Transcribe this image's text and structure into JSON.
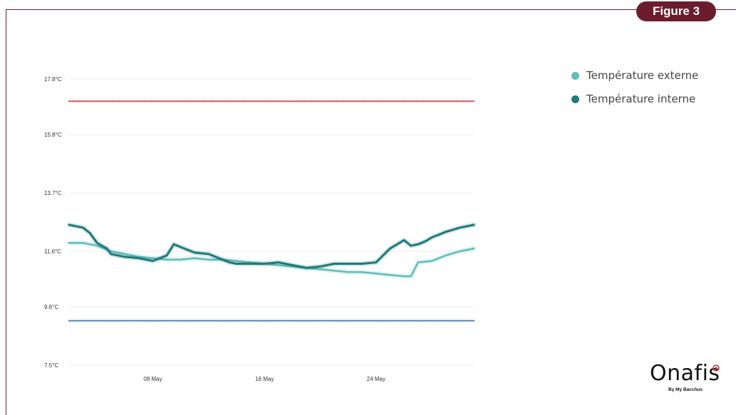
{
  "figure_label": "Figure 3",
  "logo": {
    "name": "Onafis",
    "tagline": "By My Bacchus"
  },
  "colors": {
    "brand": "#6b1d2b",
    "externe": "#5fbcbc",
    "interne": "#1f7a78",
    "upper_threshold": "#d05a5a",
    "lower_threshold": "#4a7fb5",
    "grid": "#eeeeee"
  },
  "chart_data": {
    "type": "line",
    "title": "",
    "xlabel": "",
    "ylabel": "",
    "ylim": [
      7.5,
      17.8
    ],
    "xlim": [
      0,
      29
    ],
    "y_ticks": [
      17.8,
      15.8,
      13.7,
      11.6,
      9.6,
      7.5
    ],
    "y_tick_labels": [
      "17.8°C",
      "15.8°C",
      "13.7°C",
      "11.6°C",
      "9.6°C",
      "7.5°C"
    ],
    "x_ticks": [
      6,
      14,
      22
    ],
    "x_tick_labels": [
      "08 May",
      "16 May",
      "24 May"
    ],
    "grid": true,
    "legend_position": "top-right",
    "series": [
      {
        "name": "Température externe",
        "x": [
          0,
          1,
          1.5,
          2,
          3,
          4,
          5,
          6,
          7,
          8,
          9,
          10,
          11,
          12,
          13,
          14,
          15,
          16,
          17,
          18,
          19,
          20,
          21,
          22,
          23,
          24,
          24.5,
          25,
          26,
          26.5,
          27,
          28,
          29
        ],
        "values": [
          11.9,
          11.9,
          11.85,
          11.8,
          11.6,
          11.5,
          11.4,
          11.35,
          11.3,
          11.3,
          11.35,
          11.3,
          11.3,
          11.25,
          11.2,
          11.15,
          11.1,
          11.05,
          11.0,
          10.95,
          10.9,
          10.85,
          10.85,
          10.8,
          10.75,
          10.7,
          10.7,
          11.2,
          11.25,
          11.35,
          11.45,
          11.6,
          11.7
        ]
      },
      {
        "name": "Température interne",
        "x": [
          0,
          1,
          1.5,
          2,
          2.7,
          3,
          4,
          5,
          6,
          6.5,
          7,
          7.5,
          8,
          9,
          10,
          11,
          11.5,
          12,
          13,
          14,
          15,
          16,
          17,
          18,
          19,
          20,
          21,
          22,
          23,
          24,
          24.5,
          25,
          25.5,
          26,
          27,
          28,
          29
        ],
        "values": [
          12.55,
          12.45,
          12.25,
          11.9,
          11.7,
          11.5,
          11.4,
          11.35,
          11.25,
          11.35,
          11.45,
          11.85,
          11.75,
          11.55,
          11.5,
          11.3,
          11.2,
          11.15,
          11.15,
          11.15,
          11.2,
          11.1,
          11.0,
          11.05,
          11.15,
          11.15,
          11.15,
          11.2,
          11.7,
          12.0,
          11.8,
          11.85,
          11.95,
          12.1,
          12.3,
          12.45,
          12.55
        ]
      }
    ],
    "thresholds": [
      {
        "value": 17.0,
        "style": "dotted",
        "color": "#d05a5a"
      },
      {
        "value": 9.1,
        "style": "dotted",
        "color": "#4a7fb5"
      }
    ]
  }
}
